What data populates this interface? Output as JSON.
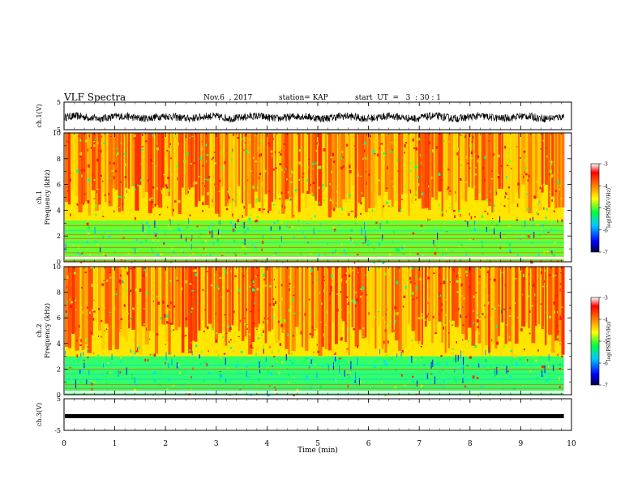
{
  "header": {
    "title": "VLF Spectra",
    "date": "Nov.6  , 2017",
    "station": "station= KAP",
    "start": "start  UT  =   3  : 30 : 1"
  },
  "chart_data": [
    {
      "type": "line",
      "panel": "ch1-waveform",
      "ylabel": "ch.1(V)",
      "ylim": [
        -5,
        5
      ],
      "yticks": [
        "5",
        "-5"
      ],
      "xlim": [
        0,
        10
      ],
      "approx_amplitude_range": [
        -2.5,
        2.5
      ]
    },
    {
      "type": "heatmap",
      "panel": "ch1-spectrogram",
      "ylabel": "ch.1\nFrequency  (kHz)",
      "ylim": [
        0,
        10
      ],
      "yticks": [
        "0",
        "2",
        "4",
        "6",
        "8",
        "10"
      ],
      "xlim": [
        0,
        10
      ],
      "colorbar": {
        "label": "log(PSD)(V²/Hz)",
        "range": [
          -7,
          -3
        ],
        "ticks": [
          "-3",
          "-4",
          "-5",
          "-6",
          "-7"
        ]
      }
    },
    {
      "type": "heatmap",
      "panel": "ch2-spectrogram",
      "ylabel": "ch.2\nFrequency  (kHz)",
      "ylim": [
        0,
        10
      ],
      "yticks": [
        "0",
        "2",
        "4",
        "6",
        "8",
        "10"
      ],
      "xlim": [
        0,
        10
      ],
      "colorbar": {
        "label": "log(PSD)(V²/Hz)",
        "range": [
          -7,
          -3
        ],
        "ticks": [
          "-3",
          "-4",
          "-5",
          "-6",
          "-7"
        ]
      }
    },
    {
      "type": "line",
      "panel": "ch3-waveform",
      "ylabel": "ch.3(V)",
      "ylim": [
        -5,
        5
      ],
      "yticks": [
        "5",
        "-5"
      ],
      "xlim": [
        0,
        10
      ],
      "approx_value": -0.5
    }
  ],
  "xaxis": {
    "label": "Time  (min)",
    "ticks": [
      "0",
      "1",
      "2",
      "3",
      "4",
      "5",
      "6",
      "7",
      "8",
      "9",
      "10"
    ]
  },
  "colors": {
    "colormap": [
      "#000060",
      "#0000ff",
      "#00aaff",
      "#00ffcc",
      "#00ff00",
      "#aaff00",
      "#ffff00",
      "#ffaa00",
      "#ff2a00",
      "#ff0000",
      "#ffffff"
    ]
  }
}
